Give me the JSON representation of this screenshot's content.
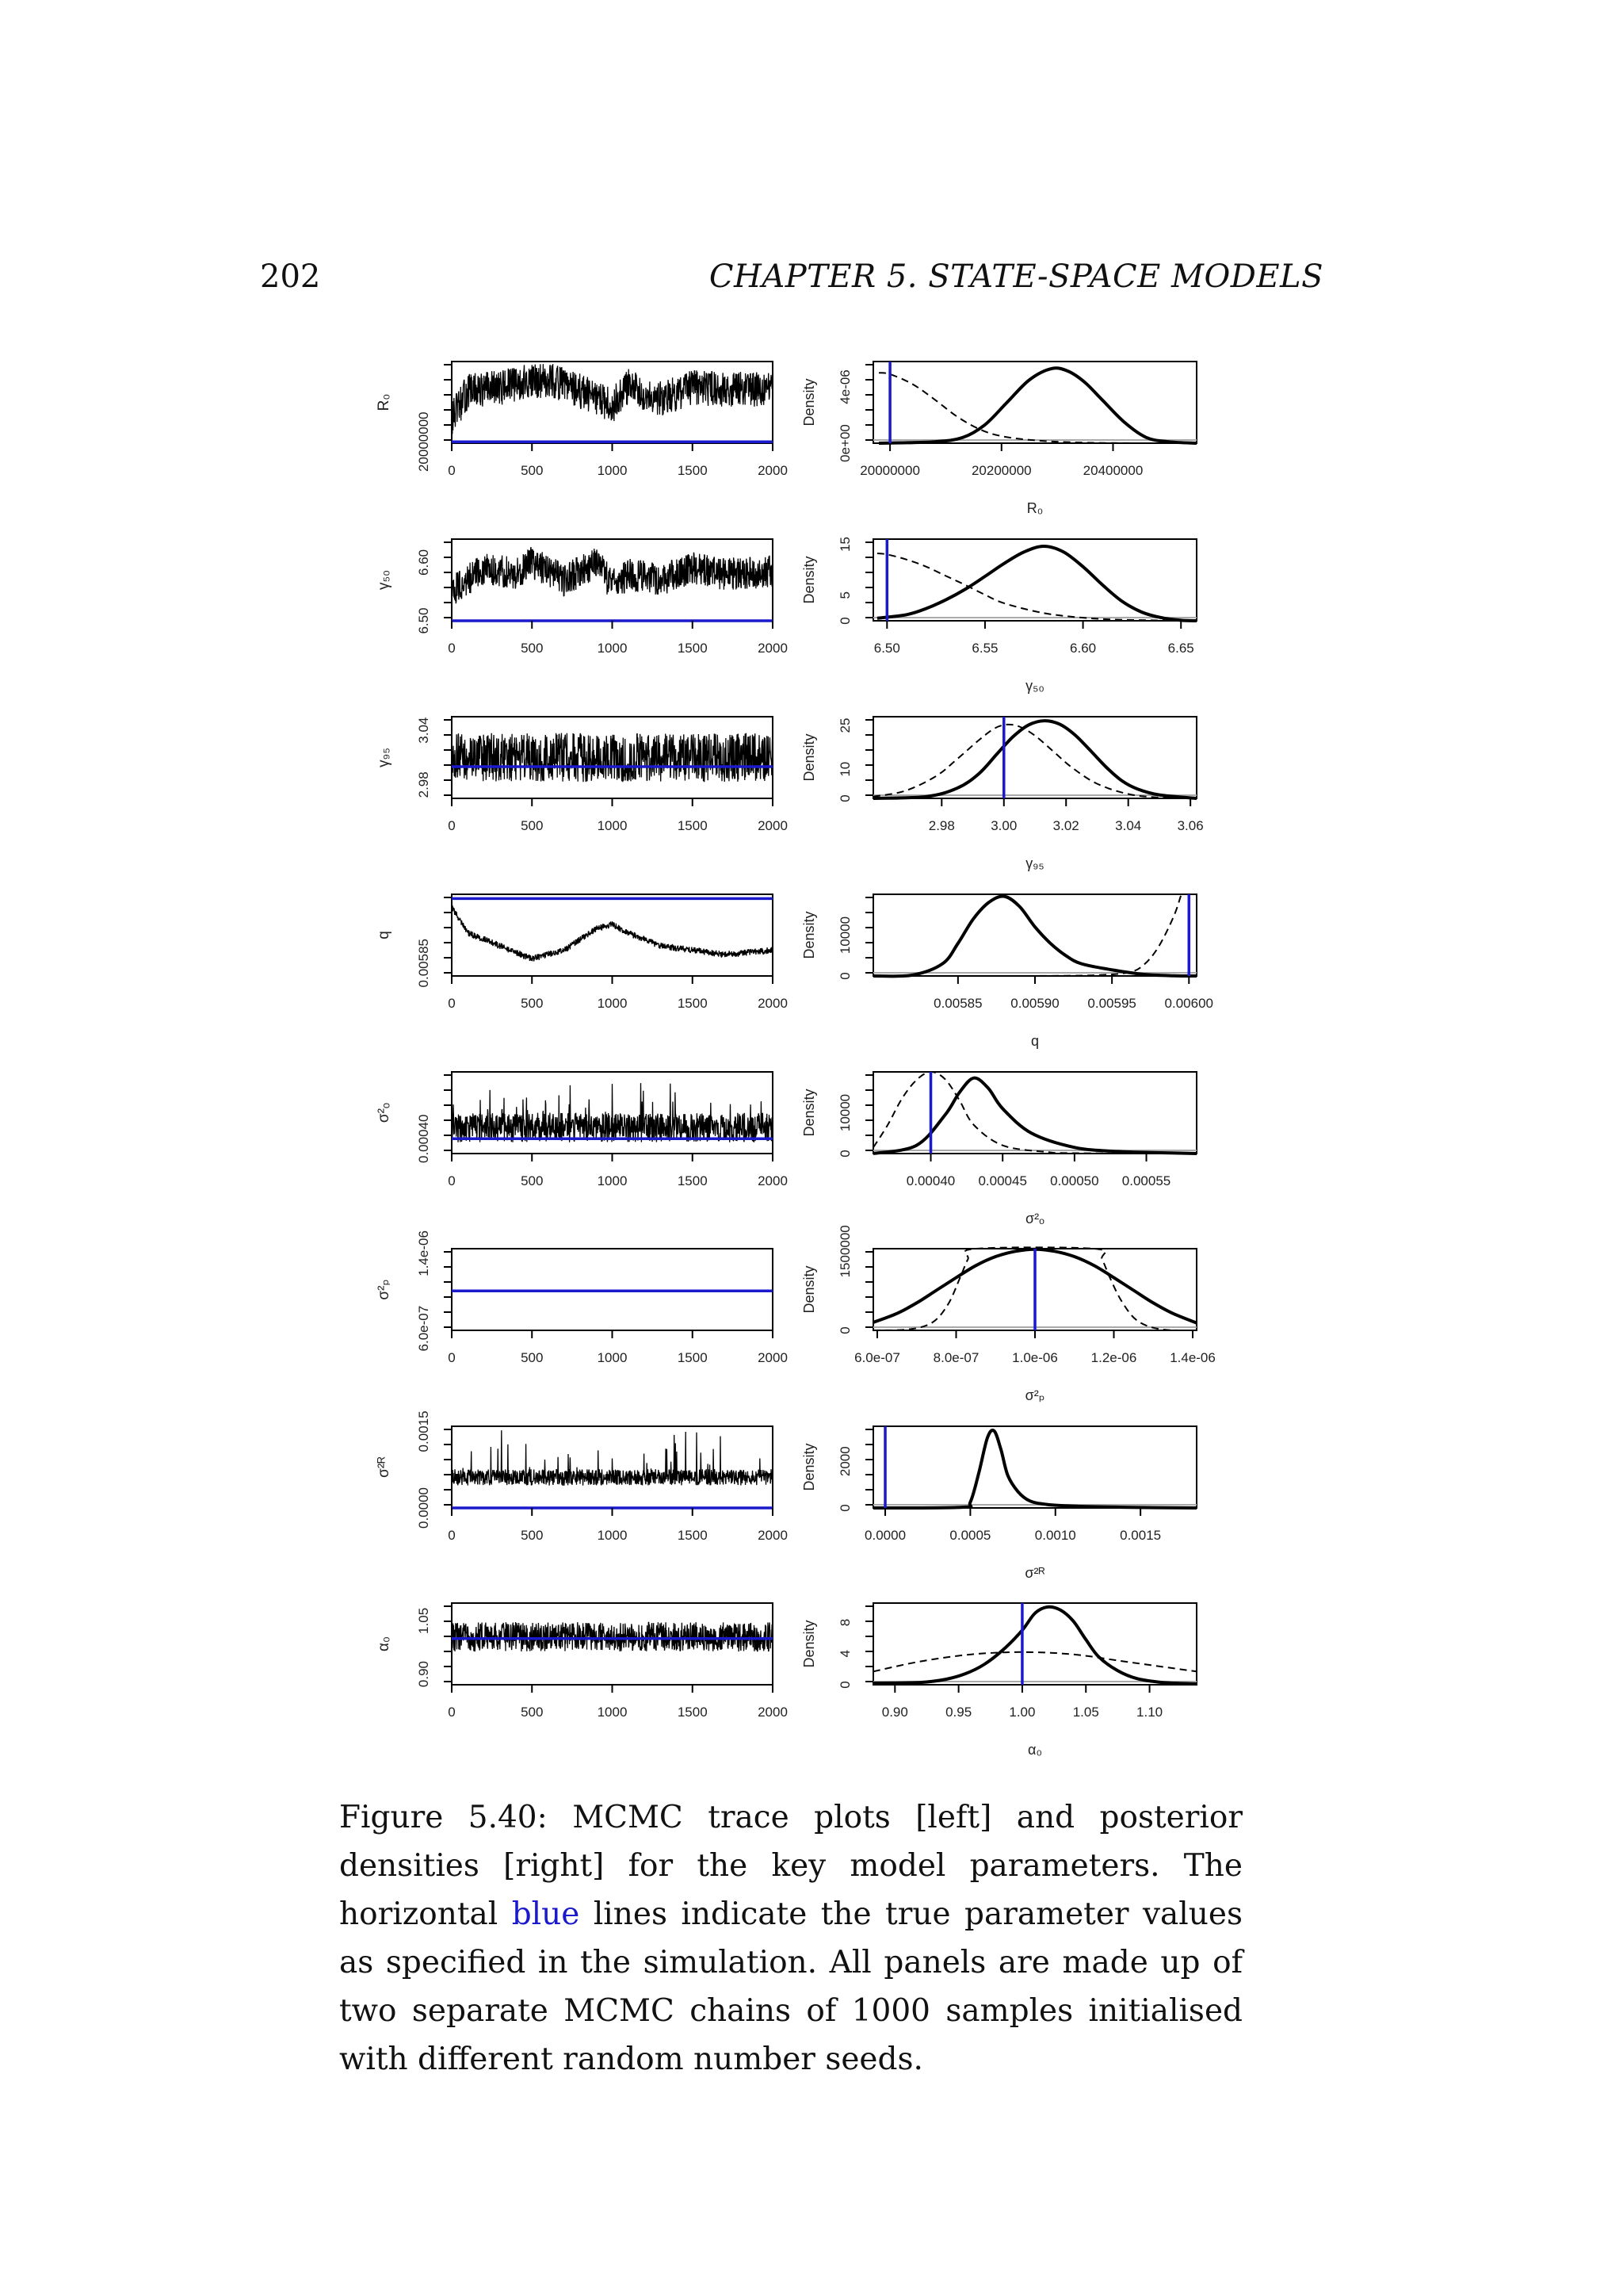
{
  "page": {
    "number": "202",
    "running_head": "CHAPTER 5.  STATE-SPACE MODELS"
  },
  "caption": {
    "label": "Figure 5.40:",
    "text_before_blue": "MCMC trace plots [left] and posterior densities [right] for the key model parameters. The horizontal",
    "blue_word": "blue",
    "text_after_blue": "lines indicate the true parameter values as specified in the simulation. All panels are made up of two separate MCMC chains of 1000 samples initialised with different random number seeds."
  },
  "colors": {
    "truth_line": "#1a1acc",
    "trace": "#000000",
    "posterior": "#000000",
    "prior": "#000000"
  },
  "chart_data": [
    {
      "type": "line",
      "panel": "trace",
      "ylabel": "R₀",
      "x_ticks": [
        "0",
        "500",
        "1000",
        "1500",
        "2000"
      ],
      "y_ticks": [
        "20000000"
      ],
      "xlim": [
        0,
        2000
      ],
      "ylim": [
        19990000,
        20560000
      ],
      "truth": 20000000,
      "iterations": 2000,
      "trace_segments": [
        {
          "x": [
            0,
            100,
            300,
            600,
            800,
            1000,
            1100,
            1300,
            1500,
            1700,
            2000
          ],
          "y": [
            20160000,
            20350000,
            20380000,
            20440000,
            20350000,
            20250000,
            20390000,
            20300000,
            20380000,
            20370000,
            20360000
          ]
        }
      ]
    },
    {
      "type": "line",
      "panel": "density",
      "ylabel": "Density",
      "xlabel": "R₀",
      "x_ticks": [
        "20000000",
        "20200000",
        "20400000"
      ],
      "x_tick_values": [
        20000000,
        20200000,
        20400000
      ],
      "y_ticks": [
        "0e+00",
        "4e-06"
      ],
      "y_tick_values": [
        0,
        4e-06
      ],
      "xlim": [
        19970000,
        20550000
      ],
      "ylim": [
        0,
        5.8e-06
      ],
      "truth": 20000000,
      "posterior": {
        "x": [
          19980000,
          20080000,
          20130000,
          20170000,
          20210000,
          20250000,
          20290000,
          20320000,
          20350000,
          20380000,
          20420000,
          20460000,
          20500000,
          20550000
        ],
        "y": [
          0,
          1e-07,
          4e-07,
          1.3e-06,
          2.9e-06,
          4.5e-06,
          5.3e-06,
          5.1e-06,
          4.3e-06,
          3.1e-06,
          1.5e-06,
          4e-07,
          1e-07,
          0
        ]
      },
      "prior": {
        "x": [
          19980000,
          20000000,
          20040000,
          20080000,
          20120000,
          20160000,
          20200000,
          20260000,
          20340000,
          20450000,
          20550000
        ],
        "y": [
          5e-06,
          4.9e-06,
          4.2e-06,
          3.1e-06,
          1.9e-06,
          1e-06,
          5e-07,
          2e-07,
          5e-08,
          0,
          0
        ]
      }
    },
    {
      "type": "line",
      "panel": "trace",
      "ylabel": "γ₅₀",
      "x_ticks": [
        "0",
        "500",
        "1000",
        "1500",
        "2000"
      ],
      "y_ticks": [
        "6.50",
        "6.60"
      ],
      "y_tick_values": [
        6.5,
        6.6
      ],
      "xlim": [
        0,
        2000
      ],
      "ylim": [
        6.5,
        6.64
      ],
      "truth": 6.5,
      "iterations": 2000,
      "trace_segments": [
        {
          "x": [
            0,
            200,
            400,
            500,
            700,
            900,
            1000,
            1100,
            1300,
            1500,
            1700,
            2000
          ],
          "y": [
            6.55,
            6.59,
            6.58,
            6.6,
            6.57,
            6.6,
            6.56,
            6.58,
            6.57,
            6.59,
            6.58,
            6.585
          ]
        }
      ]
    },
    {
      "type": "line",
      "panel": "density",
      "ylabel": "Density",
      "xlabel": "γ₅₀",
      "x_ticks": [
        "6.50",
        "6.55",
        "6.60",
        "6.65"
      ],
      "x_tick_values": [
        6.5,
        6.55,
        6.6,
        6.65
      ],
      "y_ticks": [
        "0",
        "5",
        "15"
      ],
      "y_tick_values": [
        0,
        5,
        15
      ],
      "xlim": [
        6.493,
        6.658
      ],
      "ylim": [
        0,
        16
      ],
      "truth": 6.5,
      "posterior": {
        "x": [
          6.495,
          6.51,
          6.52,
          6.53,
          6.54,
          6.55,
          6.56,
          6.57,
          6.58,
          6.59,
          6.6,
          6.61,
          6.62,
          6.63,
          6.64,
          6.65,
          6.658
        ],
        "y": [
          0.5,
          1.2,
          2.4,
          4.1,
          6.2,
          8.7,
          11.3,
          13.5,
          14.6,
          13.5,
          10.6,
          7.0,
          3.8,
          1.7,
          0.6,
          0.1,
          0
        ]
      },
      "prior": {
        "x": [
          6.495,
          6.5,
          6.51,
          6.52,
          6.53,
          6.54,
          6.55,
          6.56,
          6.58,
          6.6,
          6.62,
          6.658
        ],
        "y": [
          13.2,
          13,
          12,
          10.6,
          8.8,
          7.0,
          5.1,
          3.4,
          1.5,
          0.6,
          0.2,
          0
        ]
      }
    },
    {
      "type": "line",
      "panel": "trace",
      "ylabel": "γ₉₅",
      "x_ticks": [
        "0",
        "500",
        "1000",
        "1500",
        "2000"
      ],
      "y_ticks": [
        "2.98",
        "3.04"
      ],
      "y_tick_values": [
        2.98,
        3.04
      ],
      "xlim": [
        0,
        2000
      ],
      "ylim": [
        2.965,
        3.055
      ],
      "truth": 3.0,
      "iterations": 2000,
      "trace_segments": [
        {
          "x": [
            0,
            2000
          ],
          "y": [
            3.01,
            3.01
          ]
        }
      ]
    },
    {
      "type": "line",
      "panel": "density",
      "ylabel": "Density",
      "xlabel": "γ₉₅",
      "x_ticks": [
        "2.98",
        "3.00",
        "3.02",
        "3.04",
        "3.06"
      ],
      "x_tick_values": [
        2.98,
        3.0,
        3.02,
        3.04,
        3.06
      ],
      "y_ticks": [
        "0",
        "10",
        "25"
      ],
      "y_tick_values": [
        0,
        10,
        25
      ],
      "xlim": [
        2.958,
        3.062
      ],
      "ylim": [
        0,
        28
      ],
      "truth": 3.0,
      "posterior": {
        "x": [
          2.958,
          2.975,
          2.985,
          2.992,
          2.998,
          3.003,
          3.008,
          3.013,
          3.018,
          3.023,
          3.028,
          3.033,
          3.038,
          3.043,
          3.05,
          3.062
        ],
        "y": [
          0,
          0.6,
          3.5,
          8.5,
          15.5,
          21.2,
          25.2,
          26.6,
          25.4,
          21.6,
          16.2,
          10.6,
          6,
          3.2,
          1.2,
          0
        ]
      },
      "prior": {
        "x": [
          2.958,
          2.968,
          2.978,
          2.985,
          2.992,
          2.997,
          3.001,
          3.005,
          3.01,
          3.016,
          3.022,
          3.03,
          3.04,
          3.05,
          3.062
        ],
        "y": [
          0.6,
          2.5,
          7.5,
          13.5,
          20,
          24,
          25.3,
          24.6,
          21.5,
          16,
          10.5,
          5,
          1.5,
          0.3,
          0
        ]
      }
    },
    {
      "type": "line",
      "panel": "trace",
      "ylabel": "q",
      "x_ticks": [
        "0",
        "500",
        "1000",
        "1500",
        "2000"
      ],
      "y_ticks": [
        "0.00585"
      ],
      "y_tick_values": [
        0.00585
      ],
      "xlim": [
        0,
        2000
      ],
      "ylim": [
        0.00582,
        0.00601
      ],
      "truth": 0.006,
      "iterations": 2000,
      "trace_segments": [
        {
          "x": [
            0,
            100,
            300,
            500,
            700,
            900,
            1000,
            1100,
            1300,
            1500,
            1700,
            2000
          ],
          "y": [
            0.00598,
            0.00592,
            0.00589,
            0.00586,
            0.00588,
            0.00593,
            0.00594,
            0.00592,
            0.00589,
            0.00588,
            0.00587,
            0.00588
          ]
        }
      ]
    },
    {
      "type": "line",
      "panel": "density",
      "ylabel": "Density",
      "xlabel": "q",
      "x_ticks": [
        "0.00585",
        "0.00590",
        "0.00595",
        "0.00600"
      ],
      "x_tick_values": [
        0.00585,
        0.0059,
        0.00595,
        0.006
      ],
      "y_ticks": [
        "0",
        "10000"
      ],
      "y_tick_values": [
        0,
        10000
      ],
      "xlim": [
        0.005795,
        0.006005
      ],
      "ylim": [
        0,
        20000
      ],
      "truth": 0.006,
      "posterior": {
        "x": [
          0.005795,
          0.00582,
          0.00584,
          0.00585,
          0.00586,
          0.00587,
          0.00588,
          0.00589,
          0.0059,
          0.00591,
          0.00592,
          0.00593,
          0.00595,
          0.00597,
          0.00599,
          0.006005
        ],
        "y": [
          0,
          200,
          3000,
          8000,
          14000,
          18000,
          19500,
          17000,
          12000,
          8000,
          5000,
          3000,
          1500,
          400,
          50,
          0
        ]
      },
      "prior": {
        "x": [
          0.005795,
          0.00588,
          0.00592,
          0.00594,
          0.00596,
          0.00597,
          0.00598,
          0.00599,
          0.005995
        ],
        "y": [
          0,
          0,
          50,
          200,
          800,
          2500,
          7000,
          14500,
          20000
        ]
      }
    },
    {
      "type": "line",
      "panel": "trace",
      "ylabel": "σ²ₒ",
      "x_ticks": [
        "0",
        "500",
        "1000",
        "1500",
        "2000"
      ],
      "y_ticks": [
        "0.00040"
      ],
      "y_tick_values": [
        0.0004
      ],
      "xlim": [
        0,
        2000
      ],
      "ylim": [
        0.00036,
        0.00058
      ],
      "truth": 0.0004,
      "iterations": 2000,
      "trace_segments": [
        {
          "x": [
            0,
            2000
          ],
          "y": [
            0.00043,
            0.00043
          ]
        }
      ]
    },
    {
      "type": "line",
      "panel": "density",
      "ylabel": "Density",
      "xlabel": "σ²ₒ",
      "x_ticks": [
        "0.00040",
        "0.00045",
        "0.00050",
        "0.00055"
      ],
      "x_tick_values": [
        0.0004,
        0.00045,
        0.0005,
        0.00055
      ],
      "y_ticks": [
        "0",
        "10000"
      ],
      "y_tick_values": [
        0,
        10000
      ],
      "xlim": [
        0.00036,
        0.000585
      ],
      "ylim": [
        0,
        20000
      ],
      "truth": 0.0004,
      "posterior": {
        "x": [
          0.00036,
          0.00039,
          0.00041,
          0.00042,
          0.00043,
          0.00044,
          0.00045,
          0.00047,
          0.0005,
          0.00053,
          0.00056,
          0.000585
        ],
        "y": [
          0,
          2000,
          9500,
          15000,
          18500,
          16000,
          11000,
          5000,
          1500,
          500,
          200,
          0
        ]
      },
      "prior": {
        "x": [
          0.00036,
          0.00037,
          0.00038,
          0.00039,
          0.0004,
          0.00041,
          0.00042,
          0.00043,
          0.00045,
          0.00048,
          0.0005,
          0.000585
        ],
        "y": [
          1500,
          7000,
          13500,
          18000,
          20000,
          18200,
          13000,
          7000,
          2000,
          400,
          100,
          0
        ]
      }
    },
    {
      "type": "line",
      "panel": "trace",
      "ylabel": "σ²ₚ",
      "x_ticks": [
        "0",
        "500",
        "1000",
        "1500",
        "2000"
      ],
      "y_ticks": [
        "6.0e-07",
        "1.4e-06"
      ],
      "y_tick_values": [
        6e-07,
        1.4e-06
      ],
      "xlim": [
        0,
        2000
      ],
      "ylim": [
        5.8e-07,
        1.45e-06
      ],
      "truth": 1e-06,
      "iterations": 2000,
      "trace_segments": []
    },
    {
      "type": "line",
      "panel": "density",
      "ylabel": "Density",
      "xlabel": "σ²ₚ",
      "x_ticks": [
        "6.0e-07",
        "8.0e-07",
        "1.0e-06",
        "1.2e-06",
        "1.4e-06"
      ],
      "x_tick_values": [
        6e-07,
        8e-07,
        1e-06,
        1.2e-06,
        1.4e-06
      ],
      "y_ticks": [
        "0",
        "1500000"
      ],
      "y_tick_values": [
        0,
        1500000
      ],
      "xlim": [
        5.9e-07,
        1.41e-06
      ],
      "ylim": [
        0,
        1550000
      ],
      "truth": 1e-06,
      "posterior": {
        "x": [
          5.9e-07,
          6.5e-07,
          7e-07,
          7.5e-07,
          8e-07,
          8.5e-07,
          9e-07,
          9.5e-07,
          1e-06,
          1.05e-06,
          1.1e-06,
          1.15e-06,
          1.2e-06,
          1.25e-06,
          1.3e-06,
          1.35e-06,
          1.41e-06
        ],
        "y": [
          150000,
          320000,
          520000,
          760000,
          1000000,
          1230000,
          1400000,
          1500000,
          1540000,
          1500000,
          1400000,
          1230000,
          1000000,
          760000,
          520000,
          320000,
          140000
        ]
      },
      "prior": {
        "x": [
          5.9e-07,
          6.8e-07,
          7.4e-07,
          7.8e-07,
          8.1e-07,
          8.3e-07,
          8.5e-07,
          1.15e-06,
          1.17e-06,
          1.19e-06,
          1.22e-06,
          1.26e-06,
          1.32e-06,
          1.41e-06
        ],
        "y": [
          0,
          20000,
          150000,
          500000,
          1000000,
          1350000,
          1550000,
          1550000,
          1350000,
          1000000,
          550000,
          180000,
          20000,
          0
        ]
      }
    },
    {
      "type": "line",
      "panel": "trace",
      "ylabel": "σ²ᴿ",
      "x_ticks": [
        "0",
        "500",
        "1000",
        "1500",
        "2000"
      ],
      "y_ticks": [
        "0.0000",
        "0.0015"
      ],
      "y_tick_values": [
        0,
        0.0015
      ],
      "xlim": [
        0,
        2000
      ],
      "ylim": [
        0,
        0.0016
      ],
      "truth": 0,
      "iterations": 2000,
      "trace_segments": [
        {
          "x": [
            0,
            2000
          ],
          "y": [
            0.0006,
            0.0006
          ]
        }
      ]
    },
    {
      "type": "line",
      "panel": "density",
      "ylabel": "Density",
      "xlabel": "σ²ᴿ",
      "x_ticks": [
        "0.0000",
        "0.0005",
        "0.0010",
        "0.0015"
      ],
      "x_tick_values": [
        0,
        0.0005,
        0.001,
        0.0015
      ],
      "y_ticks": [
        "0",
        "2000"
      ],
      "y_tick_values": [
        0,
        2000
      ],
      "xlim": [
        -7e-05,
        0.00183
      ],
      "ylim": [
        0,
        3500
      ],
      "truth": 0,
      "posterior": {
        "x": [
          -7e-05,
          0.00045,
          0.0005,
          0.00055,
          0.0006,
          0.00064,
          0.00068,
          0.00072,
          0.00078,
          0.00085,
          0.00095,
          0.0011,
          0.0014,
          0.00183
        ],
        "y": [
          0,
          30,
          250,
          1500,
          3000,
          3300,
          2500,
          1400,
          700,
          300,
          150,
          80,
          30,
          0
        ]
      },
      "prior": {
        "x": [
          -7e-05,
          0.00183
        ],
        "y": [
          0,
          0
        ]
      }
    },
    {
      "type": "line",
      "panel": "trace",
      "ylabel": "α₀",
      "x_ticks": [
        "0",
        "500",
        "1000",
        "1500",
        "2000"
      ],
      "y_ticks": [
        "0.90",
        "1.05"
      ],
      "y_tick_values": [
        0.9,
        1.05
      ],
      "xlim": [
        0,
        2000
      ],
      "ylim": [
        0.87,
        1.1
      ],
      "truth": 1.0,
      "iterations": 2000,
      "trace_segments": [
        {
          "x": [
            0,
            2000
          ],
          "y": [
            1.005,
            1.005
          ]
        }
      ]
    },
    {
      "type": "line",
      "panel": "density",
      "ylabel": "Density",
      "xlabel": "α₀",
      "x_ticks": [
        "0.90",
        "0.95",
        "1.00",
        "1.05",
        "1.10"
      ],
      "x_tick_values": [
        0.9,
        0.95,
        1.0,
        1.05,
        1.1
      ],
      "y_ticks": [
        "0",
        "4",
        "8"
      ],
      "y_tick_values": [
        0,
        4,
        8
      ],
      "xlim": [
        0.883,
        1.137
      ],
      "ylim": [
        0,
        10.5
      ],
      "truth": 1.0,
      "posterior": {
        "x": [
          0.883,
          0.92,
          0.94,
          0.955,
          0.97,
          0.985,
          1.0,
          1.01,
          1.02,
          1.03,
          1.04,
          1.05,
          1.06,
          1.075,
          1.09,
          1.11,
          1.137
        ],
        "y": [
          0.2,
          0.3,
          0.7,
          1.4,
          2.6,
          4.5,
          7,
          9.2,
          10,
          9.6,
          8.2,
          5.8,
          3.6,
          1.8,
          0.8,
          0.3,
          0.1
        ]
      },
      "prior": {
        "x": [
          0.883,
          0.92,
          0.96,
          1.0,
          1.04,
          1.08,
          1.137
        ],
        "y": [
          1.7,
          3,
          3.9,
          4.2,
          3.9,
          3,
          1.7
        ]
      }
    }
  ]
}
